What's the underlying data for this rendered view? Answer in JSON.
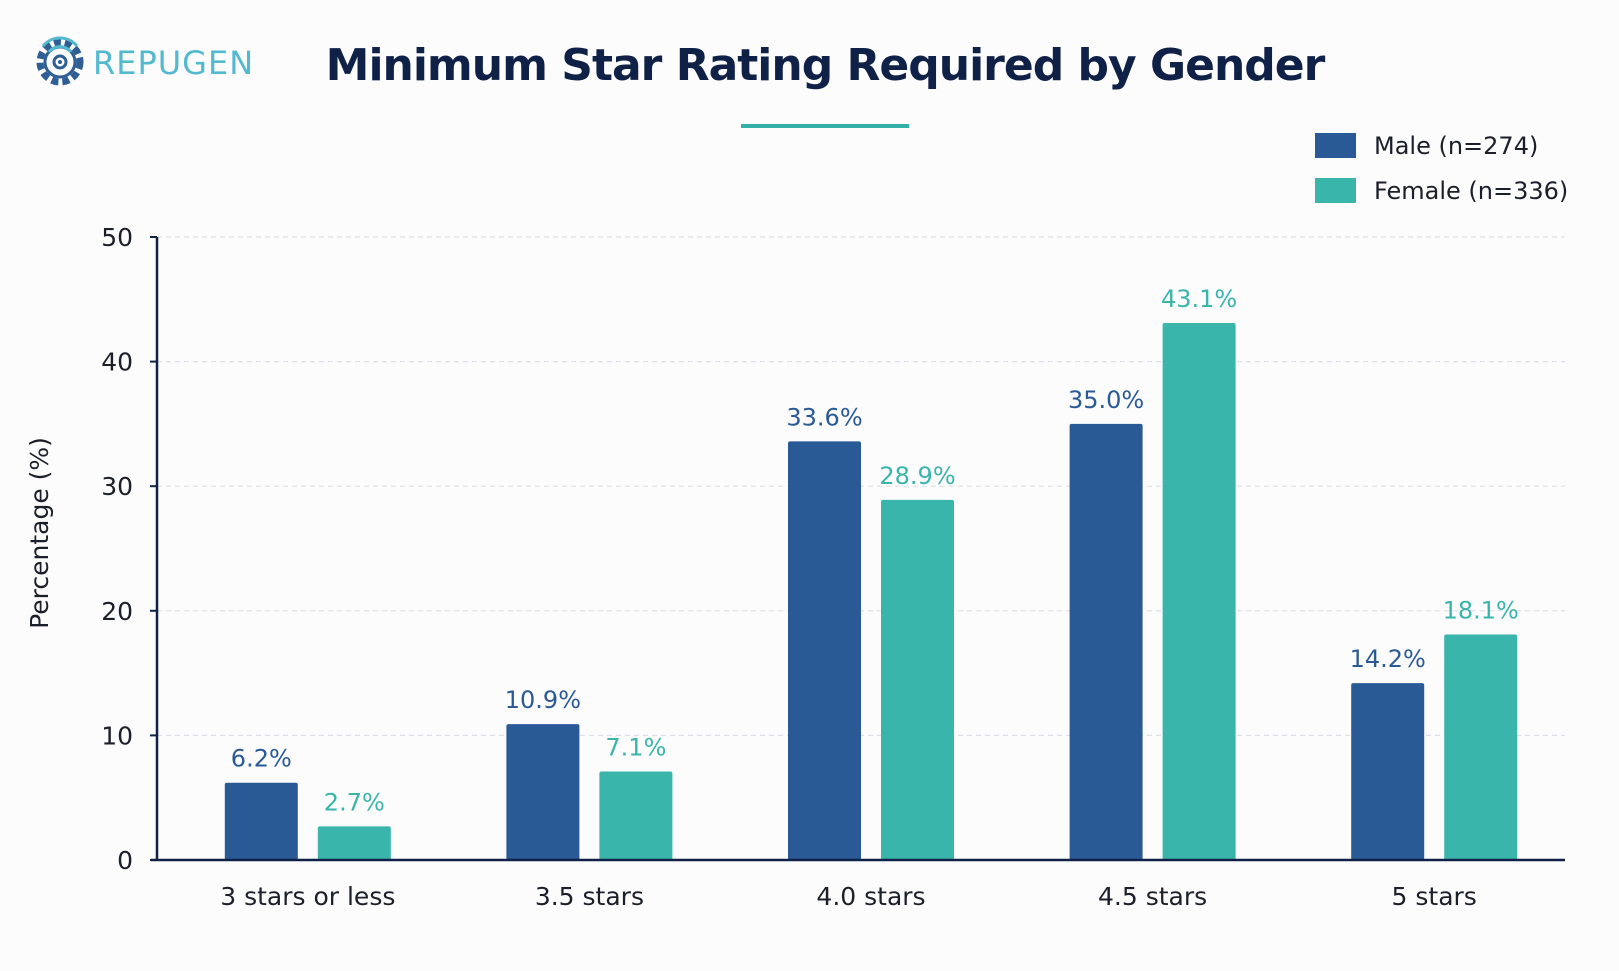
{
  "brand": {
    "logo_text": "REPUGEN",
    "logo_icon": "gear-wifi-icon",
    "colors": {
      "logo_icon": "#2e5e94",
      "logo_text": "#52b9cf"
    }
  },
  "colors": {
    "title": "#0f2147",
    "accent_line": "#33b0a7",
    "male": "#2a5a96",
    "female": "#3ab5ab",
    "axis": "#0f2147",
    "grid": "#dcdfe5",
    "text": "#1b1f29"
  },
  "chart_data": {
    "type": "bar",
    "title": "Minimum Star Rating Required by Gender",
    "ylabel": "Percentage (%)",
    "xlabel": "",
    "categories": [
      "3 stars or less",
      "3.5 stars",
      "4.0 stars",
      "4.5 stars",
      "5 stars"
    ],
    "series": [
      {
        "name": "Male (n=274)",
        "values": [
          6.2,
          10.9,
          33.6,
          35.0,
          14.2
        ],
        "labels": [
          "6.2%",
          "10.9%",
          "33.6%",
          "35.0%",
          "14.2%"
        ]
      },
      {
        "name": "Female (n=336)",
        "values": [
          2.7,
          7.1,
          28.9,
          43.1,
          18.1
        ],
        "labels": [
          "2.7%",
          "7.1%",
          "28.9%",
          "43.1%",
          "18.1%"
        ]
      }
    ],
    "ylim": [
      0,
      50
    ],
    "yticks": [
      0,
      10,
      20,
      30,
      40,
      50
    ],
    "ytick_labels": [
      "0",
      "10",
      "20",
      "30",
      "40",
      "50"
    ],
    "grid": true,
    "legend_position": "top-right"
  }
}
